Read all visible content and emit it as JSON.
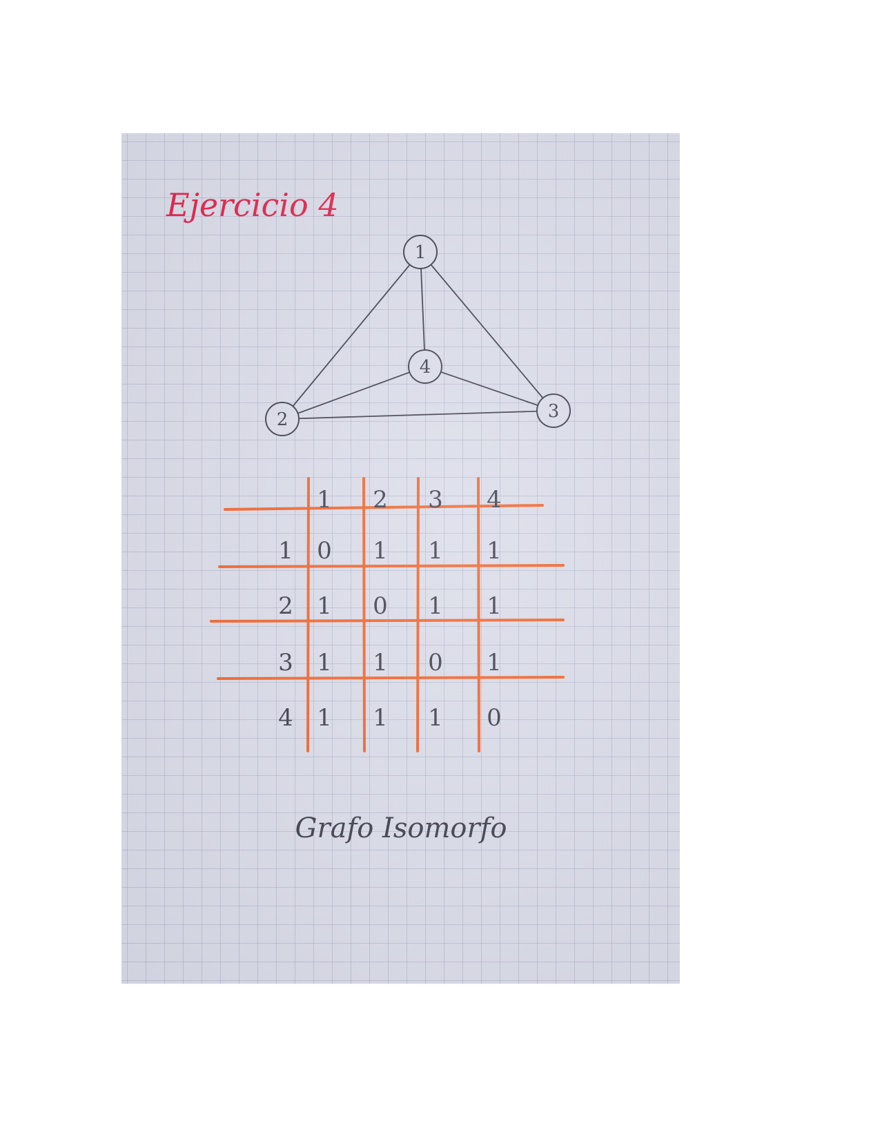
{
  "colors": {
    "title": "#e2204a",
    "pencil": "#3b3b4a",
    "grid_marker": "#f0622a",
    "paper": "#d9dbe8"
  },
  "title": "Ejercicio 4",
  "graph": {
    "nodes": [
      {
        "id": "1",
        "label": "1"
      },
      {
        "id": "2",
        "label": "2"
      },
      {
        "id": "3",
        "label": "3"
      },
      {
        "id": "4",
        "label": "4"
      }
    ],
    "edges": [
      [
        "1",
        "2"
      ],
      [
        "1",
        "3"
      ],
      [
        "1",
        "4"
      ],
      [
        "4",
        "2"
      ],
      [
        "4",
        "3"
      ],
      [
        "2",
        "3"
      ]
    ]
  },
  "matrix": {
    "col_headers": [
      "1",
      "2",
      "3",
      "4"
    ],
    "row_headers": [
      "1",
      "2",
      "3",
      "4"
    ],
    "cells": [
      [
        "0",
        "1",
        "1",
        "1"
      ],
      [
        "1",
        "0",
        "1",
        "1"
      ],
      [
        "1",
        "1",
        "0",
        "1"
      ],
      [
        "1",
        "1",
        "1",
        "0"
      ]
    ]
  },
  "caption": "Grafo Isomorfo"
}
